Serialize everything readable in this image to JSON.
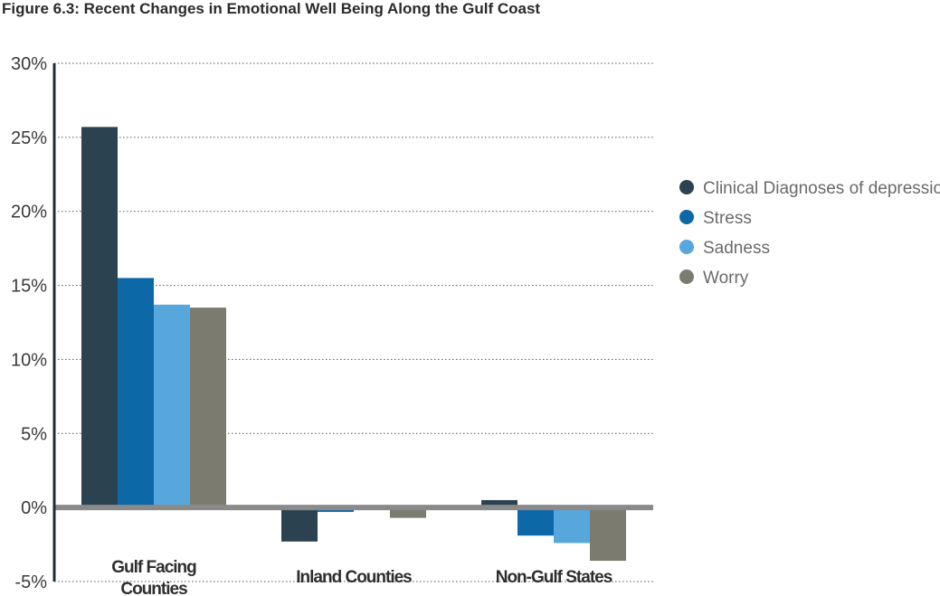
{
  "chart_data": {
    "type": "bar",
    "title": "Figure 6.3: Recent Changes in Emotional Well Being Along the Gulf Coast",
    "categories": [
      [
        "Gulf Facing",
        "Counties"
      ],
      [
        "Inland Counties"
      ],
      [
        "Non-Gulf States"
      ]
    ],
    "series": [
      {
        "name": "Clinical Diagnoses of depression",
        "color": "#2b4250",
        "values": [
          25.7,
          -2.3,
          0.5
        ]
      },
      {
        "name": "Stress",
        "color": "#0d68a8",
        "values": [
          15.5,
          -0.3,
          -1.9
        ]
      },
      {
        "name": "Sadness",
        "color": "#57a7dd",
        "values": [
          13.7,
          0.0,
          -2.4
        ]
      },
      {
        "name": "Worry",
        "color": "#7b7b6f",
        "values": [
          13.5,
          -0.7,
          -3.6
        ]
      }
    ],
    "ylim": [
      -5,
      30
    ],
    "yticks": [
      -5,
      0,
      5,
      10,
      15,
      20,
      25,
      30
    ],
    "ytick_labels": [
      "-5%",
      "0%",
      "5%",
      "10%",
      "15%",
      "20%",
      "25%",
      "30%"
    ],
    "grid": "horizontal dotted",
    "legend_position": "right",
    "axis_color": "#8a8a8a"
  }
}
